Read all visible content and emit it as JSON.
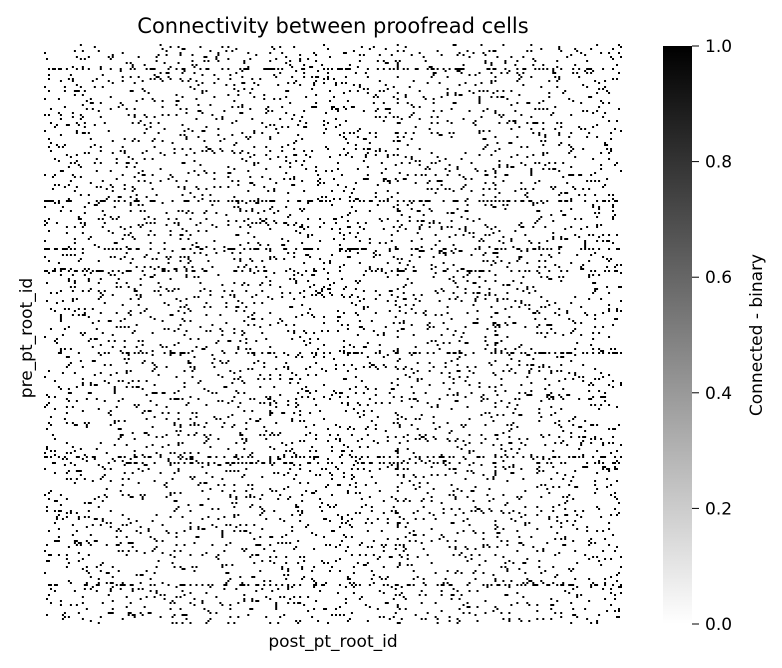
{
  "chart_data": {
    "type": "heatmap",
    "title": "Connectivity between proofread cells",
    "xlabel": "post_pt_root_id",
    "ylabel": "pre_pt_root_id",
    "x_tick_labels": "hidden",
    "y_tick_labels": "hidden",
    "value_range": [
      0,
      1
    ],
    "values_binary": true,
    "approx_connection_density": 0.05,
    "colormap": {
      "low": "#ffffff",
      "high": "#000000"
    },
    "colorbar": {
      "label": "Connected - binary",
      "ticks": [
        "0.0",
        "0.2",
        "0.4",
        "0.6",
        "0.8",
        "1.0"
      ],
      "tick_values": [
        0.0,
        0.2,
        0.4,
        0.6,
        0.8,
        1.0
      ],
      "placement": "right"
    }
  }
}
